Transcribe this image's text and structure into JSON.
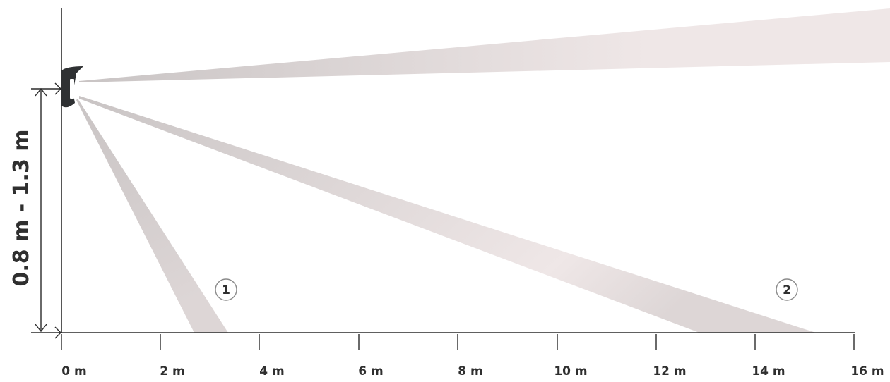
{
  "diagram": {
    "height_label": "0.8 m - 1.3 m",
    "x_axis_ticks": [
      "0 m",
      "2 m",
      "4 m",
      "6 m",
      "8 m",
      "10 m",
      "12 m",
      "14 m",
      "16 m"
    ],
    "zones": [
      {
        "label": "1"
      },
      {
        "label": "2"
      }
    ],
    "colors": {
      "beam_light": "#efe7e7",
      "beam_dark": "#c9c4c4",
      "sensor": "#2f3133",
      "axis": "#2b2b2b"
    }
  }
}
